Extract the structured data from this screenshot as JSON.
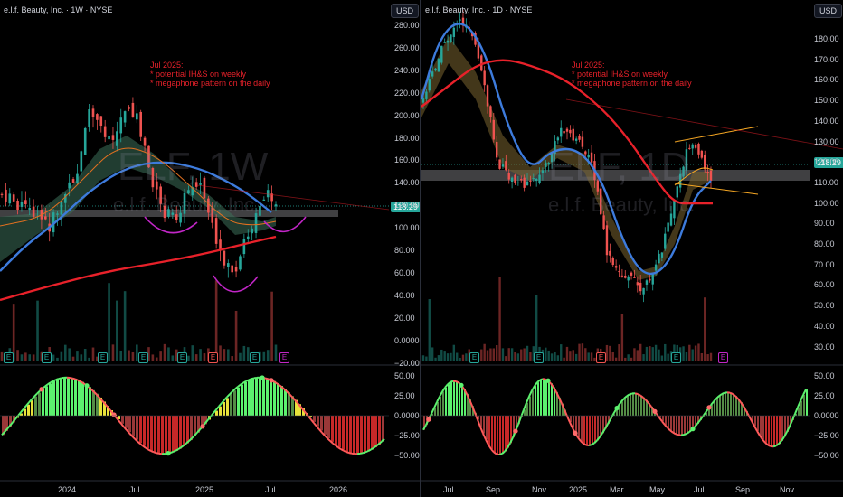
{
  "left": {
    "title": "e.l.f. Beauty, Inc. · 1W · NYSE",
    "currency": "USD",
    "watermark_symbol": "ELF, 1W",
    "watermark_name": "e.l.f. Beauty, Inc.",
    "annotation": [
      "Jul 2025:",
      "* potential IH&S on weekly",
      "* megaphone pattern on the daily"
    ],
    "price_tag": "118.29",
    "yticks": [
      "280.00",
      "260.00",
      "240.00",
      "220.00",
      "200.00",
      "180.00",
      "160.00",
      "140.00",
      "120.00",
      "100.00",
      "80.00",
      "60.00",
      "40.00",
      "20.00",
      "0.0000",
      "−20.00"
    ],
    "osc_yticks": [
      "50.00",
      "25.00",
      "0.0000",
      "−25.00",
      "−50.00"
    ],
    "xticks": [
      "2024",
      "Jul",
      "2025",
      "Jul",
      "2026"
    ],
    "events": [
      "E",
      "E",
      "E",
      "E",
      "E",
      "E",
      "E",
      "E"
    ]
  },
  "right": {
    "title": "e.l.f. Beauty, Inc. · 1D · NYSE",
    "currency": "USD",
    "watermark_symbol": "ELF, 1D",
    "watermark_name": "e.l.f. Beauty, Inc.",
    "annotation": [
      "Jul 2025:",
      "* potential IH&S on weekly",
      "* megaphone pattern on the daily"
    ],
    "price_tag": "118.29",
    "yticks": [
      "180.00",
      "170.00",
      "160.00",
      "150.00",
      "140.00",
      "130.00",
      "120.00",
      "110.00",
      "100.00",
      "90.00",
      "80.00",
      "70.00",
      "60.00",
      "50.00",
      "40.00",
      "30.00"
    ],
    "osc_yticks": [
      "50.00",
      "25.00",
      "0.0000",
      "−25.00",
      "−50.00"
    ],
    "xticks": [
      "Jul",
      "Sep",
      "Nov",
      "2025",
      "Mar",
      "May",
      "Jul",
      "Sep",
      "Nov"
    ],
    "events": [
      "E",
      "E",
      "E",
      "E",
      "E"
    ]
  },
  "colors": {
    "up": "#26a69a",
    "down": "#ef5350",
    "ma_blue": "#3d7bdc",
    "ma_red": "#e8212a",
    "magenta": "#c126c6",
    "orange": "#f5a623",
    "osc_up": "#5cf26e",
    "osc_down": "#ff5a5a",
    "osc_yellow": "#e8e23a"
  }
}
